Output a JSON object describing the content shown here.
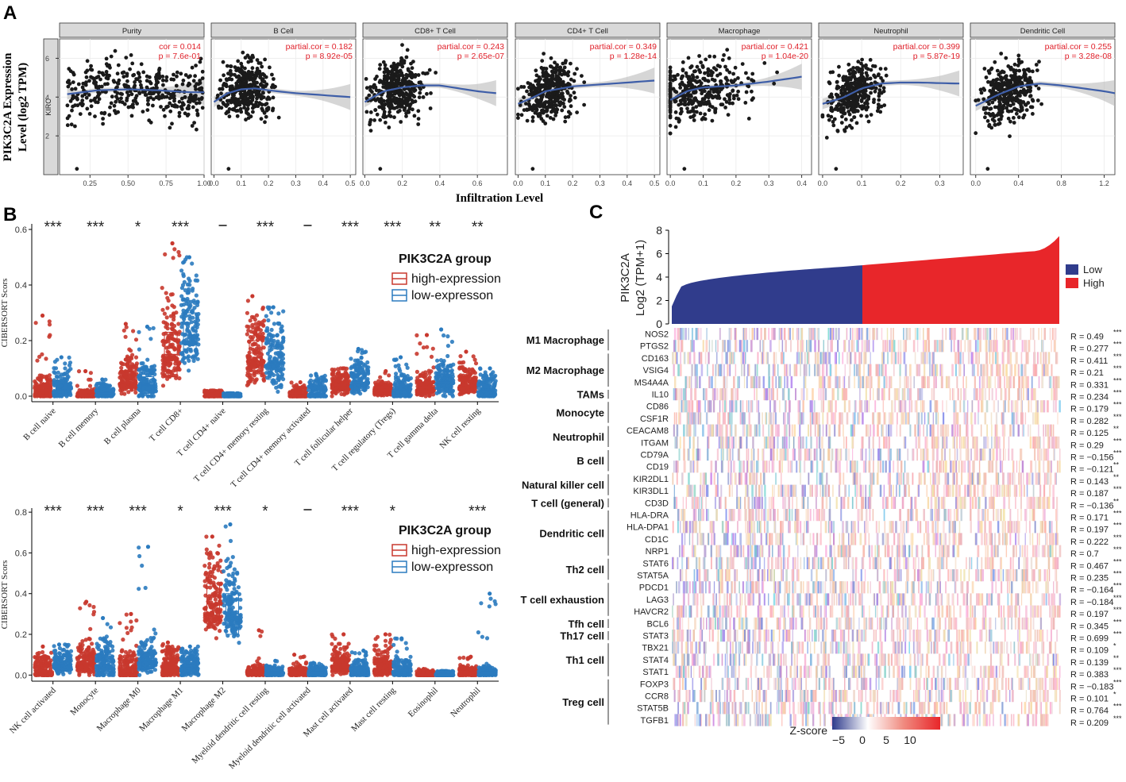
{
  "figure_label_A": "A",
  "figure_label_B": "B",
  "figure_label_C": "C",
  "chart_data": [
    {
      "id": "A",
      "type": "scatter",
      "title": "",
      "ylabel_line1": "PIK3C2A Expression",
      "ylabel_line2": "Level (log2 TPM)",
      "xlabel": "Infiltration Level",
      "row_label": "KIRC",
      "ylim": [
        0,
        7
      ],
      "yticks": [
        2,
        4,
        6
      ],
      "panels": [
        {
          "name": "Purity",
          "cor_text": "cor = 0.014",
          "p_text": "p = 7.6e-01",
          "xlim": [
            0.05,
            1.0
          ],
          "xticks": [
            0.25,
            0.5,
            0.75,
            1.0
          ],
          "xtick_labels": [
            "0.25",
            "0.50",
            "0.75",
            "1.00"
          ],
          "trend_x": [
            0.1,
            0.3,
            0.5,
            0.7,
            0.9,
            1.0
          ],
          "trend_y": [
            4.15,
            4.35,
            4.4,
            4.35,
            4.25,
            4.25
          ]
        },
        {
          "name": "B Cell",
          "cor_text": "partial.cor = 0.182",
          "p_text": "p = 8.92e-05",
          "xlim": [
            -0.01,
            0.52
          ],
          "xticks": [
            0.0,
            0.1,
            0.2,
            0.3,
            0.4,
            0.5
          ],
          "xtick_labels": [
            "0.0",
            "0.1",
            "0.2",
            "0.3",
            "0.4",
            "0.5"
          ],
          "trend_x": [
            0.0,
            0.05,
            0.1,
            0.15,
            0.2,
            0.3,
            0.4,
            0.5
          ],
          "trend_y": [
            3.75,
            4.2,
            4.4,
            4.45,
            4.35,
            4.2,
            4.1,
            4.0
          ]
        },
        {
          "name": "CD8+ T Cell",
          "cor_text": "partial.cor = 0.243",
          "p_text": "p = 2.65e-07",
          "xlim": [
            -0.01,
            0.76
          ],
          "xticks": [
            0.0,
            0.2,
            0.4,
            0.6
          ],
          "xtick_labels": [
            "0.0",
            "0.2",
            "0.4",
            "0.6"
          ],
          "trend_x": [
            0.0,
            0.1,
            0.2,
            0.3,
            0.4,
            0.5,
            0.6,
            0.7
          ],
          "trend_y": [
            3.75,
            4.3,
            4.5,
            4.6,
            4.6,
            4.45,
            4.3,
            4.2
          ]
        },
        {
          "name": "CD4+ T Cell",
          "cor_text": "partial.cor = 0.349",
          "p_text": "p = 1.28e-14",
          "xlim": [
            -0.01,
            0.52
          ],
          "xticks": [
            0.0,
            0.1,
            0.2,
            0.3,
            0.4,
            0.5
          ],
          "xtick_labels": [
            "0.0",
            "0.1",
            "0.2",
            "0.3",
            "0.4",
            "0.5"
          ],
          "trend_x": [
            0.0,
            0.05,
            0.1,
            0.2,
            0.3,
            0.4,
            0.5
          ],
          "trend_y": [
            3.65,
            3.95,
            4.3,
            4.55,
            4.65,
            4.75,
            4.85
          ]
        },
        {
          "name": "Macrophage",
          "cor_text": "partial.cor = 0.421",
          "p_text": "p = 1.04e-20",
          "xlim": [
            -0.01,
            0.43
          ],
          "xticks": [
            0.0,
            0.1,
            0.2,
            0.3,
            0.4
          ],
          "xtick_labels": [
            "0.0",
            "0.1",
            "0.2",
            "0.3",
            "0.4"
          ],
          "trend_x": [
            0.0,
            0.05,
            0.1,
            0.2,
            0.3,
            0.4
          ],
          "trend_y": [
            3.85,
            4.3,
            4.5,
            4.6,
            4.8,
            5.05
          ]
        },
        {
          "name": "Neutrophil",
          "cor_text": "partial.cor = 0.399",
          "p_text": "p = 5.87e-19",
          "xlim": [
            -0.01,
            0.36
          ],
          "xticks": [
            0.0,
            0.1,
            0.2,
            0.3
          ],
          "xtick_labels": [
            "0.0",
            "0.1",
            "0.2",
            "0.3"
          ],
          "trend_x": [
            0.0,
            0.05,
            0.1,
            0.15,
            0.2,
            0.25,
            0.3,
            0.35
          ],
          "trend_y": [
            3.65,
            3.95,
            4.45,
            4.7,
            4.75,
            4.75,
            4.72,
            4.7
          ]
        },
        {
          "name": "Dendritic Cell",
          "cor_text": "partial.cor = 0.255",
          "p_text": "p = 3.28e-08",
          "xlim": [
            -0.05,
            1.3
          ],
          "xticks": [
            0.0,
            0.4,
            0.8,
            1.2
          ],
          "xtick_labels": [
            "0.0",
            "0.4",
            "0.8",
            "1.2"
          ],
          "trend_x": [
            0.0,
            0.2,
            0.4,
            0.6,
            0.8,
            1.0,
            1.2,
            1.3
          ],
          "trend_y": [
            3.55,
            4.1,
            4.55,
            4.7,
            4.6,
            4.45,
            4.3,
            4.2
          ]
        }
      ]
    },
    {
      "id": "B1",
      "type": "box-jitter",
      "ylabel": "CIBERSORT Scors",
      "ylim": [
        -0.02,
        0.62
      ],
      "yticks": [
        0.0,
        0.2,
        0.4,
        0.6
      ],
      "ytick_labels": [
        "0.0",
        "0.2",
        "0.4",
        "0.6"
      ],
      "legend_title": "PIK3C2A group",
      "series": [
        {
          "name": "high-expression",
          "color": "#c8382e"
        },
        {
          "name": "low-expresson",
          "color": "#2b7bbf"
        }
      ],
      "categories": [
        "B cell naive",
        "B cell memory",
        "B cell plasma",
        "T cell CD8+",
        "T cell CD4+ naive",
        "T cell CD4+ memory resting",
        "T cell CD4+ memory activated",
        "T cell follicular helper",
        "T cell regulatory (Tregs)",
        "T cell gamma delta",
        "NK cell resting"
      ],
      "significance": [
        "***",
        "***",
        "*",
        "***",
        "–",
        "***",
        "–",
        "***",
        "***",
        "**",
        "**"
      ],
      "high_median": [
        0.02,
        0.0,
        0.05,
        0.15,
        0.0,
        0.14,
        0.0,
        0.04,
        0.02,
        0.03,
        0.04
      ],
      "high_q3": [
        0.04,
        0.005,
        0.08,
        0.23,
        0.005,
        0.2,
        0.01,
        0.06,
        0.03,
        0.05,
        0.06
      ],
      "high_max": [
        0.29,
        0.09,
        0.26,
        0.55,
        0.02,
        0.36,
        0.05,
        0.1,
        0.09,
        0.22,
        0.16
      ],
      "low_median": [
        0.02,
        0.01,
        0.04,
        0.22,
        0.0,
        0.12,
        0.01,
        0.05,
        0.02,
        0.05,
        0.02
      ],
      "low_q3": [
        0.04,
        0.02,
        0.07,
        0.3,
        0.005,
        0.18,
        0.03,
        0.08,
        0.04,
        0.08,
        0.04
      ],
      "low_max": [
        0.14,
        0.06,
        0.25,
        0.5,
        0.01,
        0.32,
        0.08,
        0.17,
        0.14,
        0.24,
        0.1
      ]
    },
    {
      "id": "B2",
      "type": "box-jitter",
      "ylabel": "CIBERSORT Scors",
      "ylim": [
        -0.03,
        0.82
      ],
      "yticks": [
        0.0,
        0.2,
        0.4,
        0.6,
        0.8
      ],
      "ytick_labels": [
        "0.0",
        "0.2",
        "0.4",
        "0.6",
        "0.8"
      ],
      "legend_title": "PIK3C2A group",
      "series": [
        {
          "name": "high-expression",
          "color": "#c8382e"
        },
        {
          "name": "low-expresson",
          "color": "#2b7bbf"
        }
      ],
      "categories": [
        "NK cell activated",
        "Monocyte",
        "Macrophage M0",
        "Macrophage M1",
        "Macrophage M2",
        "Myeloid dendritic cell resting",
        "Myeloid dendritic cell activated",
        "Mast cell activated",
        "Mast cell resting",
        "Eosinophil",
        "Neutrophil"
      ],
      "significance": [
        "***",
        "***",
        "***",
        "*",
        "***",
        "*",
        "–",
        "***",
        "*",
        "",
        "***"
      ],
      "high_median": [
        0.02,
        0.06,
        0.02,
        0.04,
        0.35,
        0.01,
        0.01,
        0.05,
        0.03,
        0.0,
        0.01
      ],
      "high_q3": [
        0.05,
        0.1,
        0.06,
        0.08,
        0.45,
        0.02,
        0.02,
        0.08,
        0.06,
        0.005,
        0.02
      ],
      "high_max": [
        0.14,
        0.36,
        0.3,
        0.16,
        0.68,
        0.22,
        0.1,
        0.2,
        0.2,
        0.03,
        0.09
      ],
      "low_median": [
        0.05,
        0.05,
        0.07,
        0.04,
        0.3,
        0.01,
        0.01,
        0.02,
        0.02,
        0.0,
        0.01
      ],
      "low_q3": [
        0.08,
        0.1,
        0.11,
        0.07,
        0.4,
        0.02,
        0.02,
        0.04,
        0.04,
        0.005,
        0.02
      ],
      "low_max": [
        0.15,
        0.28,
        0.63,
        0.14,
        0.74,
        0.07,
        0.06,
        0.12,
        0.18,
        0.02,
        0.4
      ]
    },
    {
      "id": "C",
      "type": "heatmap",
      "bar_ylabel_line1": "PIK3C2A",
      "bar_ylabel_line2": "Log2 (TPM+1)",
      "bar_ylim": [
        0,
        8
      ],
      "bar_yticks": [
        0,
        2,
        4,
        6,
        8
      ],
      "legend": [
        {
          "name": "Low",
          "color": "#303c8c"
        },
        {
          "name": "High",
          "color": "#e8262a"
        }
      ],
      "colorbar_title": "Z-score",
      "colorbar_ticks": [
        -5,
        0,
        5,
        10
      ],
      "colorbar_tick_labels": [
        "−5",
        "0",
        "5",
        "10"
      ],
      "groups": [
        {
          "name": "M1 Macrophage",
          "genes": [
            "NOS2",
            "PTGS2"
          ]
        },
        {
          "name": "M2 Macrophage",
          "genes": [
            "CD163",
            "VSIG4",
            "MS4A4A"
          ]
        },
        {
          "name": "TAMs",
          "genes": [
            "IL10"
          ]
        },
        {
          "name": "Monocyte",
          "genes": [
            "CD86",
            "CSF1R"
          ]
        },
        {
          "name": "Neutrophil",
          "genes": [
            "CEACAM8",
            "ITGAM"
          ]
        },
        {
          "name": "B cell",
          "genes": [
            "CD79A",
            "CD19"
          ]
        },
        {
          "name": "Natural killer cell",
          "genes": [
            "KIR2DL1",
            "KIR3DL1"
          ]
        },
        {
          "name": "T cell (general)",
          "genes": [
            "CD3D"
          ]
        },
        {
          "name": "Dendritic cell",
          "genes": [
            "HLA-DRA",
            "HLA-DPA1",
            "CD1C",
            "NRP1"
          ]
        },
        {
          "name": "Th2 cell",
          "genes": [
            "STAT6",
            "STAT5A"
          ]
        },
        {
          "name": "T cell exhaustion",
          "genes": [
            "PDCD1",
            "LAG3",
            "HAVCR2"
          ]
        },
        {
          "name": "Tfh cell",
          "genes": [
            "BCL6"
          ]
        },
        {
          "name": "Th17 cell",
          "genes": [
            "STAT3"
          ]
        },
        {
          "name": "Th1 cell",
          "genes": [
            "TBX21",
            "STAT4",
            "STAT1"
          ]
        },
        {
          "name": "Treg cell",
          "genes": [
            "FOXP3",
            "CCR8",
            "STAT5B",
            "TGFB1"
          ]
        }
      ],
      "r_values": [
        {
          "r": "R = 0.49",
          "sig": "***"
        },
        {
          "r": "R = 0.277",
          "sig": "***"
        },
        {
          "r": "R = 0.411",
          "sig": "***"
        },
        {
          "r": "R = 0.21",
          "sig": "***"
        },
        {
          "r": "R = 0.331",
          "sig": "***"
        },
        {
          "r": "R = 0.234",
          "sig": "***"
        },
        {
          "r": "R = 0.179",
          "sig": "***"
        },
        {
          "r": "R = 0.282",
          "sig": "***"
        },
        {
          "r": "R = 0.125",
          "sig": "**"
        },
        {
          "r": "R = 0.29",
          "sig": "***"
        },
        {
          "r": "R = −0.156",
          "sig": "***"
        },
        {
          "r": "R = −0.121",
          "sig": "**"
        },
        {
          "r": "R = 0.143",
          "sig": "**"
        },
        {
          "r": "R = 0.187",
          "sig": "***"
        },
        {
          "r": "R = −0.136",
          "sig": "**"
        },
        {
          "r": "R = 0.171",
          "sig": "***"
        },
        {
          "r": "R = 0.197",
          "sig": "***"
        },
        {
          "r": "R = 0.222",
          "sig": "***"
        },
        {
          "r": "R = 0.7",
          "sig": "***"
        },
        {
          "r": "R = 0.467",
          "sig": "***"
        },
        {
          "r": "R = 0.235",
          "sig": "***"
        },
        {
          "r": "R = −0.164",
          "sig": "***"
        },
        {
          "r": "R = −0.184",
          "sig": "***"
        },
        {
          "r": "R = 0.197",
          "sig": "***"
        },
        {
          "r": "R = 0.345",
          "sig": "***"
        },
        {
          "r": "R = 0.699",
          "sig": "***"
        },
        {
          "r": "R = 0.109",
          "sig": "*"
        },
        {
          "r": "R = 0.139",
          "sig": "**"
        },
        {
          "r": "R = 0.383",
          "sig": "***"
        },
        {
          "r": "R = −0.183",
          "sig": "***"
        },
        {
          "r": "R = 0.101",
          "sig": "*"
        },
        {
          "r": "R = 0.764",
          "sig": "***"
        },
        {
          "r": "R = 0.209",
          "sig": "***"
        }
      ]
    }
  ]
}
